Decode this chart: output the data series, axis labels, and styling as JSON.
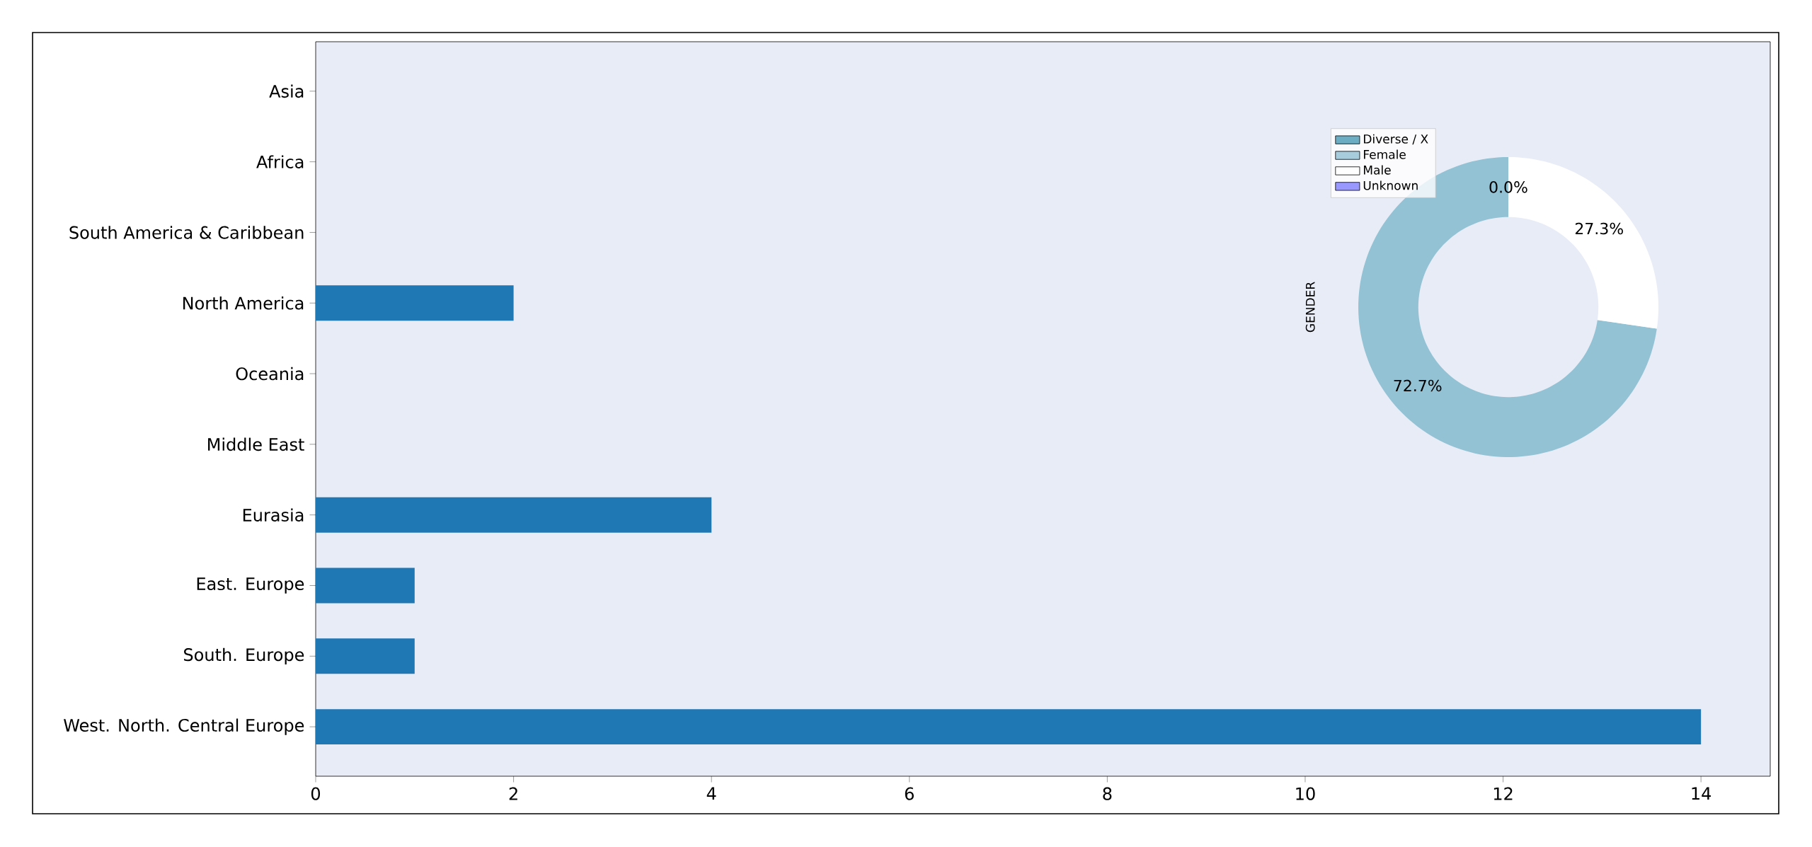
{
  "chart_data": [
    {
      "type": "bar",
      "orientation": "horizontal",
      "categories": [
        "Asia",
        "Africa",
        "South America & Caribbean",
        "North America",
        "Oceania",
        "Middle East",
        "Eurasia",
        "East. Europe",
        "South. Europe",
        "West. North. Central Europe"
      ],
      "values": [
        0,
        0,
        0,
        2,
        0,
        0,
        4,
        1,
        1,
        14
      ],
      "color": "#1f77b4",
      "xlim": [
        0,
        14.7
      ],
      "xticks": [
        0,
        2,
        4,
        6,
        8,
        10,
        12,
        14
      ],
      "grid": false
    },
    {
      "type": "donut",
      "ylabel": "GENDER",
      "categories": [
        "Diverse / X",
        "Female",
        "Male",
        "Unknown"
      ],
      "values": [
        0,
        72.7,
        27.3,
        0
      ],
      "colors": [
        "#4a9ab4",
        "#92c2d4",
        "#ffffff",
        "#8080ff"
      ],
      "value_labels": [
        "0.0%",
        "72.7%",
        "27.3%",
        null
      ],
      "legend": "top left"
    }
  ]
}
